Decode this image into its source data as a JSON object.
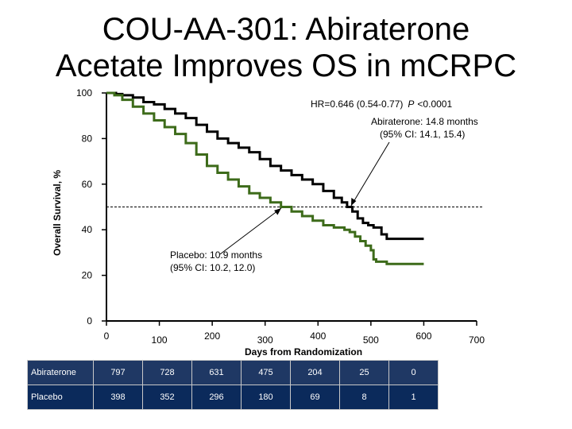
{
  "title": {
    "line1": "COU-AA-301: Abiraterone",
    "line2": "Acetate Improves OS in mCRPC"
  },
  "chart_data": {
    "type": "line",
    "subtype": "kaplan-meier step",
    "xlabel": "Days from Randomization",
    "ylabel": "Overall Survival, %",
    "xlim": [
      0,
      700
    ],
    "ylim": [
      0,
      100
    ],
    "x_ticks": [
      "0",
      "100",
      "200",
      "300",
      "400",
      "500",
      "600",
      "700"
    ],
    "y_ticks": [
      "0",
      "20",
      "40",
      "60",
      "80",
      "100"
    ],
    "median_reference_y": 50,
    "colors": {
      "abiraterone": "#000000",
      "placebo": "#3d6b1a",
      "pointer": "#000000"
    },
    "series": [
      {
        "name": "Abiraterone",
        "points": [
          [
            0,
            100
          ],
          [
            18,
            99.5
          ],
          [
            30,
            99
          ],
          [
            50,
            98
          ],
          [
            70,
            96
          ],
          [
            90,
            95
          ],
          [
            110,
            93
          ],
          [
            130,
            91
          ],
          [
            150,
            89
          ],
          [
            170,
            86
          ],
          [
            190,
            83
          ],
          [
            210,
            80
          ],
          [
            230,
            78
          ],
          [
            250,
            76
          ],
          [
            270,
            74
          ],
          [
            290,
            71
          ],
          [
            310,
            68
          ],
          [
            330,
            66
          ],
          [
            350,
            64
          ],
          [
            370,
            62
          ],
          [
            390,
            60
          ],
          [
            410,
            57
          ],
          [
            430,
            54
          ],
          [
            445,
            52
          ],
          [
            455,
            50
          ],
          [
            465,
            48
          ],
          [
            475,
            45
          ],
          [
            485,
            43
          ],
          [
            495,
            42
          ],
          [
            505,
            41
          ],
          [
            520,
            38
          ],
          [
            530,
            36
          ],
          [
            545,
            36
          ],
          [
            600,
            36
          ]
        ]
      },
      {
        "name": "Placebo",
        "points": [
          [
            0,
            100
          ],
          [
            15,
            99
          ],
          [
            30,
            97
          ],
          [
            50,
            94
          ],
          [
            70,
            91
          ],
          [
            90,
            88
          ],
          [
            110,
            85
          ],
          [
            130,
            82
          ],
          [
            150,
            78
          ],
          [
            170,
            73
          ],
          [
            190,
            68
          ],
          [
            210,
            65
          ],
          [
            230,
            62
          ],
          [
            250,
            59
          ],
          [
            270,
            56
          ],
          [
            290,
            54
          ],
          [
            310,
            52
          ],
          [
            330,
            50
          ],
          [
            350,
            48
          ],
          [
            370,
            46
          ],
          [
            390,
            44
          ],
          [
            410,
            42
          ],
          [
            430,
            41
          ],
          [
            450,
            40
          ],
          [
            460,
            39
          ],
          [
            470,
            37
          ],
          [
            480,
            35
          ],
          [
            490,
            33
          ],
          [
            500,
            31
          ],
          [
            505,
            27
          ],
          [
            510,
            26
          ],
          [
            520,
            26
          ],
          [
            530,
            25
          ],
          [
            600,
            25
          ]
        ]
      }
    ],
    "annotations": {
      "hr": "HR=0.646 (0.54-0.77)",
      "p_label": "P",
      "p_value": "<0.0001",
      "abi_line1": "Abiraterone: 14.8 months",
      "abi_line2": "(95% CI: 14.1, 15.4)",
      "pla_line1": "Placebo: 10.9 months",
      "pla_line2": "(95% CI: 10.2, 12.0)"
    }
  },
  "risk_table": {
    "rows": [
      {
        "label": "Abiraterone",
        "values": [
          "797",
          "728",
          "631",
          "475",
          "204",
          "25",
          "0"
        ]
      },
      {
        "label": "Placebo",
        "values": [
          "398",
          "352",
          "296",
          "180",
          "69",
          "8",
          "1"
        ]
      }
    ]
  }
}
